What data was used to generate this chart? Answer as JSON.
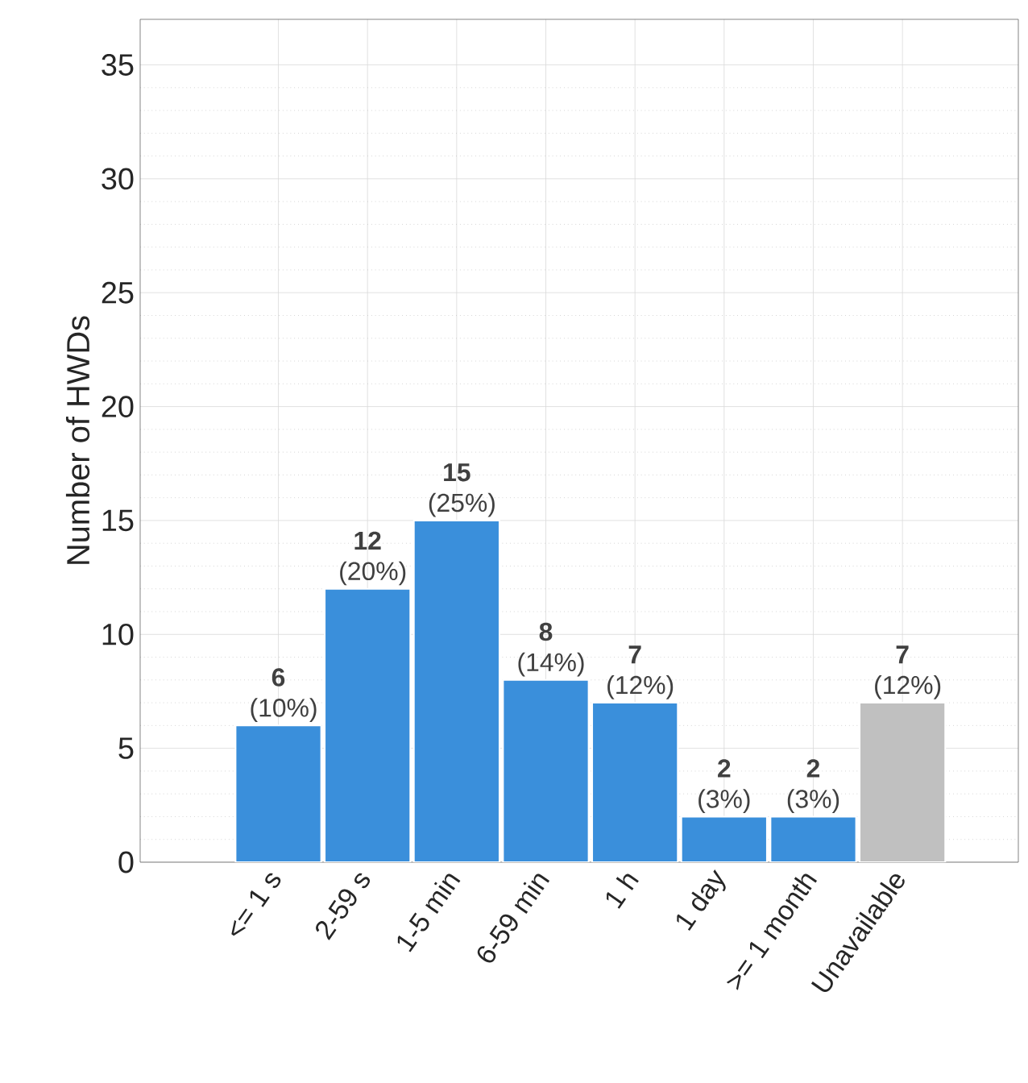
{
  "chart_data": {
    "type": "bar",
    "ylabel": "Number of HWDs",
    "categories": [
      "<= 1 s",
      "2-59 s",
      "1-5 min",
      "6-59 min",
      "1 h",
      "1 day",
      ">= 1 month",
      "Unavailable"
    ],
    "values": [
      6,
      12,
      15,
      8,
      7,
      2,
      2,
      7
    ],
    "colors": [
      "#3a8fdb",
      "#3a8fdb",
      "#3a8fdb",
      "#3a8fdb",
      "#3a8fdb",
      "#3a8fdb",
      "#3a8fdb",
      "#c0c0c0"
    ],
    "value_labels": [
      "**6** (10%)",
      "**12** (20%)",
      "**15** (25%)",
      "**8** (14%)",
      "**7** (12%)",
      "**2** (3%)",
      "**2** (3%)",
      "**7** (12%)"
    ],
    "ylim": [
      0,
      37
    ],
    "yticks": [
      0,
      5,
      10,
      15,
      20,
      25,
      30,
      35
    ],
    "grid": true
  }
}
